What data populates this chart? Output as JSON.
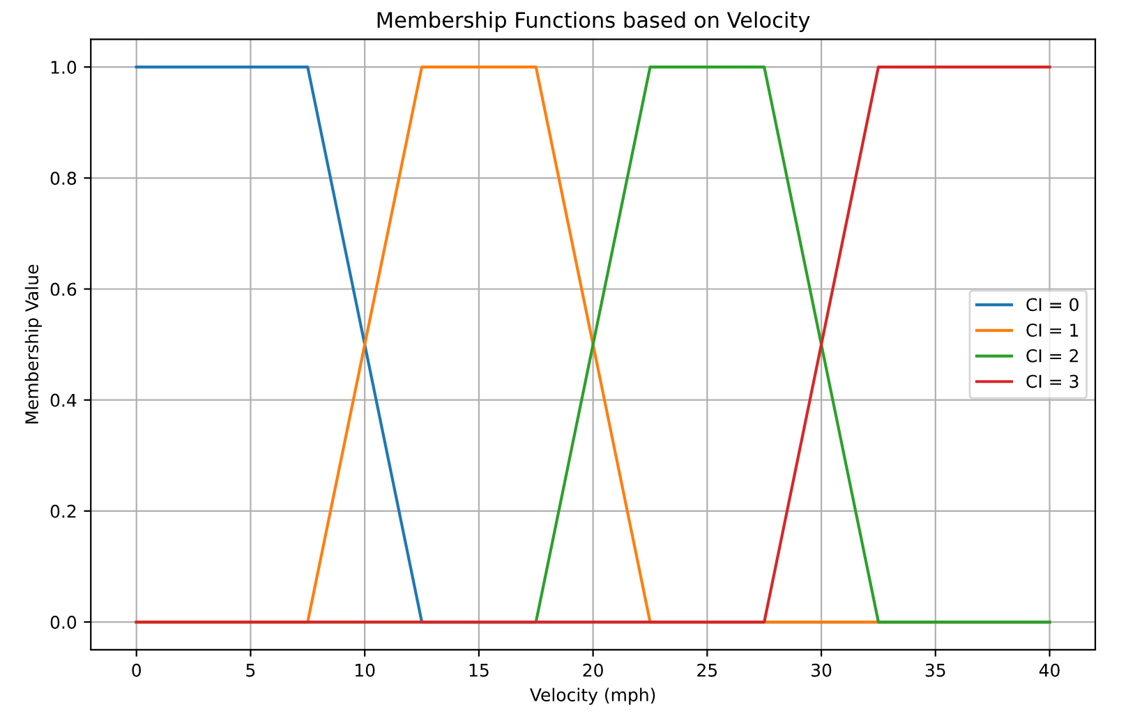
{
  "chart_data": {
    "type": "line",
    "title": "Membership Functions based on Velocity",
    "xlabel": "Velocity (mph)",
    "ylabel": "Membership Value",
    "series": [
      {
        "name": "CI = 0",
        "color": "#1f77b4",
        "x": [
          0,
          7.5,
          12.5,
          40
        ],
        "values": [
          1,
          1,
          0,
          0
        ]
      },
      {
        "name": "CI = 1",
        "color": "#ff7f0e",
        "x": [
          0,
          7.5,
          12.5,
          17.5,
          22.5,
          40
        ],
        "values": [
          0,
          0,
          1,
          1,
          0,
          0
        ]
      },
      {
        "name": "CI = 2",
        "color": "#2ca02c",
        "x": [
          0,
          17.5,
          22.5,
          27.5,
          32.5,
          40
        ],
        "values": [
          0,
          0,
          1,
          1,
          0,
          0
        ]
      },
      {
        "name": "CI = 3",
        "color": "#d62728",
        "x": [
          0,
          27.5,
          32.5,
          40
        ],
        "values": [
          0,
          0,
          1,
          1
        ]
      }
    ],
    "xlim": [
      -2,
      42
    ],
    "ylim": [
      -0.05,
      1.05
    ],
    "xticks": [
      0,
      5,
      10,
      15,
      20,
      25,
      30,
      35,
      40
    ],
    "yticks": [
      {
        "value": 0,
        "label": "0.0"
      },
      {
        "value": 0.2,
        "label": "0.2"
      },
      {
        "value": 0.4,
        "label": "0.4"
      },
      {
        "value": 0.6,
        "label": "0.6"
      },
      {
        "value": 0.8,
        "label": "0.8"
      },
      {
        "value": 1,
        "label": "1.0"
      }
    ],
    "grid": true,
    "legend": "center right",
    "line_style": "solid",
    "marker": "none"
  }
}
